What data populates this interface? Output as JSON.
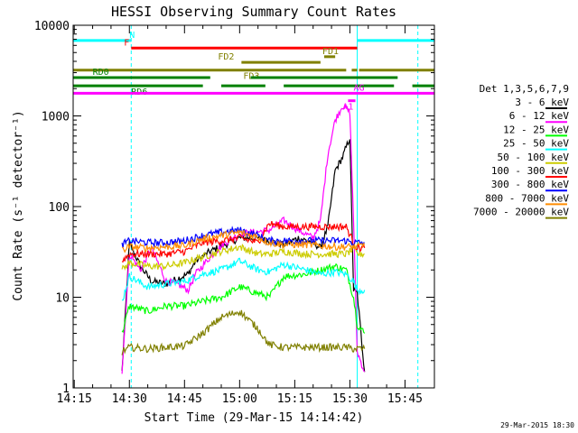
{
  "chart_data": {
    "type": "line",
    "title": "HESSI Observing Summary Count Rates",
    "xlabel": "Start Time (29-Mar-15 14:14:42)",
    "ylabel": "Count Rate (s⁻¹ detector⁻¹)",
    "ylog": true,
    "xlim": [
      "14:14:42",
      "15:53:00"
    ],
    "ylim": [
      1,
      10000
    ],
    "xticks": [
      "14:15",
      "14:30",
      "14:45",
      "15:00",
      "15:15",
      "15:30",
      "15:45"
    ],
    "yticks": [
      "1",
      "10",
      "100",
      "1000",
      "10000"
    ],
    "legend_title": "Det 1,3,5,6,7,9",
    "legend_position": "right",
    "timestamp": "29-Mar-2015 18:30",
    "series": [
      {
        "name": "3 - 6 keV",
        "color": "#000000",
        "x": [
          "14:28",
          "14:30",
          "14:33",
          "14:36",
          "14:40",
          "14:43",
          "14:46",
          "14:48",
          "14:52",
          "14:56",
          "15:00",
          "15:04",
          "15:08",
          "15:12",
          "15:16",
          "15:20",
          "15:22",
          "15:24",
          "15:26",
          "15:28",
          "15:30",
          "15:31",
          "15:32",
          "15:34"
        ],
        "y": [
          1.5,
          40,
          22,
          15,
          14,
          16,
          18,
          25,
          32,
          38,
          45,
          45,
          42,
          38,
          45,
          40,
          35,
          60,
          250,
          350,
          580,
          12,
          11,
          1.5
        ]
      },
      {
        "name": "6 - 12 keV",
        "color": "#ff00ff",
        "x": [
          "14:28",
          "14:30",
          "14:33",
          "14:36",
          "14:40",
          "14:43",
          "14:46",
          "14:48",
          "14:52",
          "14:56",
          "15:00",
          "15:04",
          "15:08",
          "15:12",
          "15:16",
          "15:20",
          "15:22",
          "15:24",
          "15:26",
          "15:28",
          "15:30",
          "15:31",
          "15:32",
          "15:34"
        ],
        "y": [
          1.5,
          30,
          20,
          35,
          15,
          14,
          12,
          18,
          28,
          40,
          50,
          52,
          55,
          70,
          55,
          45,
          70,
          380,
          900,
          1300,
          1100,
          70,
          2.5,
          1.5
        ]
      },
      {
        "name": "12 - 25 keV",
        "color": "#00ff00",
        "x": [
          "14:28",
          "14:30",
          "14:35",
          "14:40",
          "14:45",
          "14:50",
          "14:55",
          "15:00",
          "15:05",
          "15:08",
          "15:12",
          "15:18",
          "15:22",
          "15:26",
          "15:29",
          "15:31",
          "15:32",
          "15:34"
        ],
        "y": [
          4.0,
          8,
          7,
          8,
          8,
          9,
          10,
          13,
          11,
          10,
          17,
          18,
          20,
          22,
          20,
          10,
          5,
          4
        ]
      },
      {
        "name": "25 - 50 keV",
        "color": "#00ffff",
        "x": [
          "14:28",
          "14:30",
          "14:35",
          "14:40",
          "14:45",
          "14:50",
          "14:55",
          "15:00",
          "15:05",
          "15:08",
          "15:12",
          "15:18",
          "15:22",
          "15:26",
          "15:29",
          "15:31",
          "15:32",
          "15:34"
        ],
        "y": [
          9,
          17,
          13,
          14,
          15,
          18,
          20,
          25,
          20,
          19,
          23,
          20,
          18,
          19,
          18,
          15,
          12,
          12
        ]
      },
      {
        "name": "50 - 100 keV",
        "color": "#cccc00",
        "x": [
          "14:28",
          "14:30",
          "14:35",
          "14:40",
          "14:45",
          "14:50",
          "14:55",
          "15:00",
          "15:05",
          "15:08",
          "15:12",
          "15:18",
          "15:22",
          "15:26",
          "15:29",
          "15:31",
          "15:32",
          "15:34"
        ],
        "y": [
          20,
          24,
          22,
          22,
          24,
          28,
          32,
          36,
          30,
          30,
          32,
          30,
          30,
          30,
          30,
          34,
          30,
          30
        ]
      },
      {
        "name": "100 - 300 keV",
        "color": "#ff0000",
        "x": [
          "14:28",
          "14:30",
          "14:35",
          "14:40",
          "14:45",
          "14:50",
          "14:55",
          "15:00",
          "15:05",
          "15:08",
          "15:12",
          "15:18",
          "15:22",
          "15:26",
          "15:29",
          "15:31",
          "15:32",
          "15:34"
        ],
        "y": [
          25,
          30,
          30,
          30,
          32,
          40,
          42,
          45,
          40,
          65,
          60,
          60,
          60,
          60,
          60,
          40,
          35,
          35
        ]
      },
      {
        "name": "300 - 800 keV",
        "color": "#0000ff",
        "x": [
          "14:28",
          "14:30",
          "14:35",
          "14:40",
          "14:45",
          "14:50",
          "14:55",
          "15:00",
          "15:05",
          "15:08",
          "15:12",
          "15:18",
          "15:22",
          "15:26",
          "15:29",
          "15:31",
          "15:32",
          "15:34"
        ],
        "y": [
          38,
          42,
          40,
          40,
          42,
          48,
          52,
          55,
          48,
          42,
          42,
          42,
          42,
          42,
          42,
          40,
          40,
          40
        ]
      },
      {
        "name": "800 - 7000 keV",
        "color": "#ff8c00",
        "x": [
          "14:28",
          "14:30",
          "14:35",
          "14:40",
          "14:45",
          "14:50",
          "14:55",
          "15:00",
          "15:05",
          "15:08",
          "15:12",
          "15:18",
          "15:22",
          "15:26",
          "15:29",
          "15:31",
          "15:32",
          "15:34"
        ],
        "y": [
          33,
          36,
          35,
          36,
          37,
          44,
          48,
          52,
          46,
          40,
          38,
          38,
          37,
          36,
          36,
          36,
          36,
          38
        ]
      },
      {
        "name": "7000 - 20000 keV",
        "color": "#808000",
        "x": [
          "14:28",
          "14:30",
          "14:35",
          "14:40",
          "14:45",
          "14:50",
          "14:55",
          "15:00",
          "15:05",
          "15:08",
          "15:12",
          "15:18",
          "15:22",
          "15:26",
          "15:29",
          "15:31",
          "15:32",
          "15:34"
        ],
        "y": [
          2.5,
          2.8,
          2.7,
          2.8,
          2.9,
          4,
          6,
          7,
          4.5,
          3,
          2.8,
          2.8,
          2.8,
          2.8,
          2.8,
          2.7,
          2.7,
          2.7
        ]
      }
    ],
    "flags": [
      {
        "label": "N",
        "color": "#00ffff",
        "y": 6800,
        "segments": [
          [
            "14:14:42",
            "14:30:30"
          ],
          [
            "15:32:00",
            "15:53:00"
          ]
        ]
      },
      {
        "label": "F",
        "color": "#ff0000",
        "y": 5600,
        "segments": [
          [
            "14:30:30",
            "15:32:00"
          ]
        ]
      },
      {
        "label": "FD1",
        "color": "#808000",
        "y": 4500,
        "segments": [
          [
            "15:23:00",
            "15:26:00"
          ]
        ]
      },
      {
        "label": "FD2",
        "color": "#808000",
        "y": 3900,
        "segments": [
          [
            "15:00:30",
            "15:22:00"
          ]
        ]
      },
      {
        "label": "FD3",
        "color": "#808000",
        "y": 3200,
        "segments": [
          [
            "14:14:42",
            "15:29:00"
          ],
          [
            "15:30:30",
            "15:32:00"
          ],
          [
            "15:32:30",
            "15:53:00"
          ]
        ]
      },
      {
        "label": "RD0",
        "color": "#008000",
        "y": 2650,
        "segments": [
          [
            "14:14:42",
            "14:52:00"
          ],
          [
            "15:03:00",
            "15:43:00"
          ]
        ]
      },
      {
        "label": "RD6",
        "color": "#008000",
        "y": 2150,
        "segments": [
          [
            "14:14:42",
            "14:50:00"
          ],
          [
            "14:55:00",
            "15:07:00"
          ],
          [
            "15:12:00",
            "15:42:00"
          ],
          [
            "15:47:00",
            "15:53:00"
          ]
        ]
      },
      {
        "label": "AG",
        "color": "#ff00ff",
        "y": 1780,
        "segments": [
          [
            "14:14:42",
            "15:53:00"
          ]
        ]
      },
      {
        "label": "A1",
        "color": "#ff00ff",
        "y": 1470,
        "segments": [
          [
            "15:29:30",
            "15:31:30"
          ]
        ]
      }
    ]
  }
}
